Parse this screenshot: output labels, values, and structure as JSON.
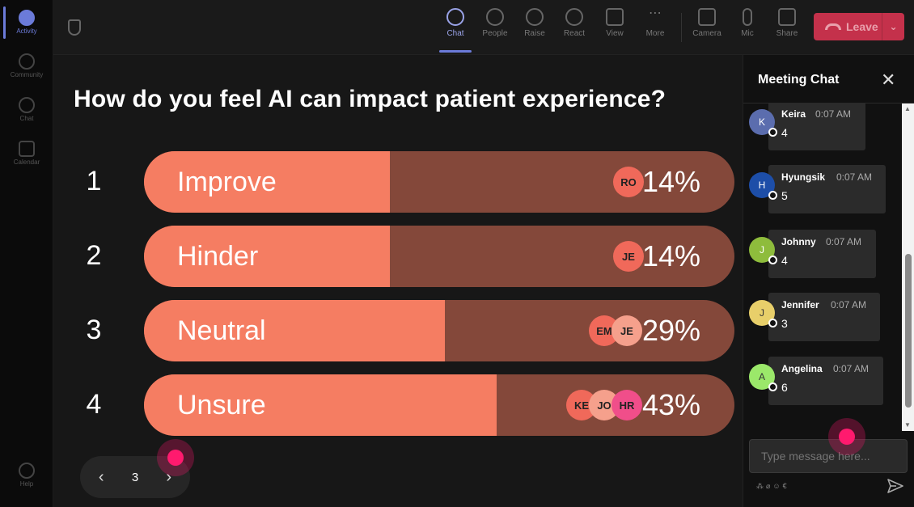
{
  "rail": {
    "items": [
      {
        "label": "Activity",
        "icon": "bell-icon"
      },
      {
        "label": "Community",
        "icon": "community-icon"
      },
      {
        "label": "Chat",
        "icon": "chat-icon"
      },
      {
        "label": "Calendar",
        "icon": "calendar-icon"
      },
      {
        "label": "Help",
        "icon": "help-icon"
      }
    ]
  },
  "toolbar": {
    "items": [
      {
        "label": "Chat",
        "icon": "chat-icon"
      },
      {
        "label": "People",
        "icon": "people-icon"
      },
      {
        "label": "Raise",
        "icon": "hand-icon"
      },
      {
        "label": "React",
        "icon": "smiley-icon"
      },
      {
        "label": "View",
        "icon": "grid-icon"
      },
      {
        "label": "More",
        "icon": "more-icon"
      },
      {
        "label": "Camera",
        "icon": "camera-icon"
      },
      {
        "label": "Mic",
        "icon": "mic-icon"
      },
      {
        "label": "Share",
        "icon": "share-icon"
      }
    ],
    "leave_label": "Leave"
  },
  "poll": {
    "question": "How do you feel AI can impact patient experience?",
    "options": [
      {
        "num": "1",
        "label": "Improve",
        "pct": "14%",
        "value": 14,
        "voters": [
          "RO"
        ]
      },
      {
        "num": "2",
        "label": "Hinder",
        "pct": "14%",
        "value": 14,
        "voters": [
          "JE"
        ]
      },
      {
        "num": "3",
        "label": "Neutral",
        "pct": "29%",
        "value": 29,
        "voters": [
          "EM",
          "JE"
        ]
      },
      {
        "num": "4",
        "label": "Unsure",
        "pct": "43%",
        "value": 43,
        "voters": [
          "KE",
          "JO",
          "HR"
        ]
      }
    ],
    "page": "3"
  },
  "chat": {
    "title": "Meeting Chat",
    "messages": [
      {
        "initial": "K",
        "name": "Keira",
        "time": "0:07 AM",
        "text": "4",
        "color": "#5b6dae"
      },
      {
        "initial": "H",
        "name": "Hyungsik",
        "time": "0:07 AM",
        "text": "5",
        "color": "#1d4ea8"
      },
      {
        "initial": "J",
        "name": "Johnny",
        "time": "0:07 AM",
        "text": "4",
        "color": "#8ebc3c"
      },
      {
        "initial": "J",
        "name": "Jennifer",
        "time": "0:07 AM",
        "text": "3",
        "color": "#e8cf6a"
      },
      {
        "initial": "A",
        "name": "Angelina",
        "time": "0:07 AM",
        "text": "6",
        "color": "#9be86a"
      }
    ],
    "input_placeholder": "Type message here..."
  },
  "colors": {
    "bar_fill": "#f57d62",
    "bar_track": "#84483a",
    "accent": "#6b7bd9",
    "leave": "#c4314b"
  }
}
